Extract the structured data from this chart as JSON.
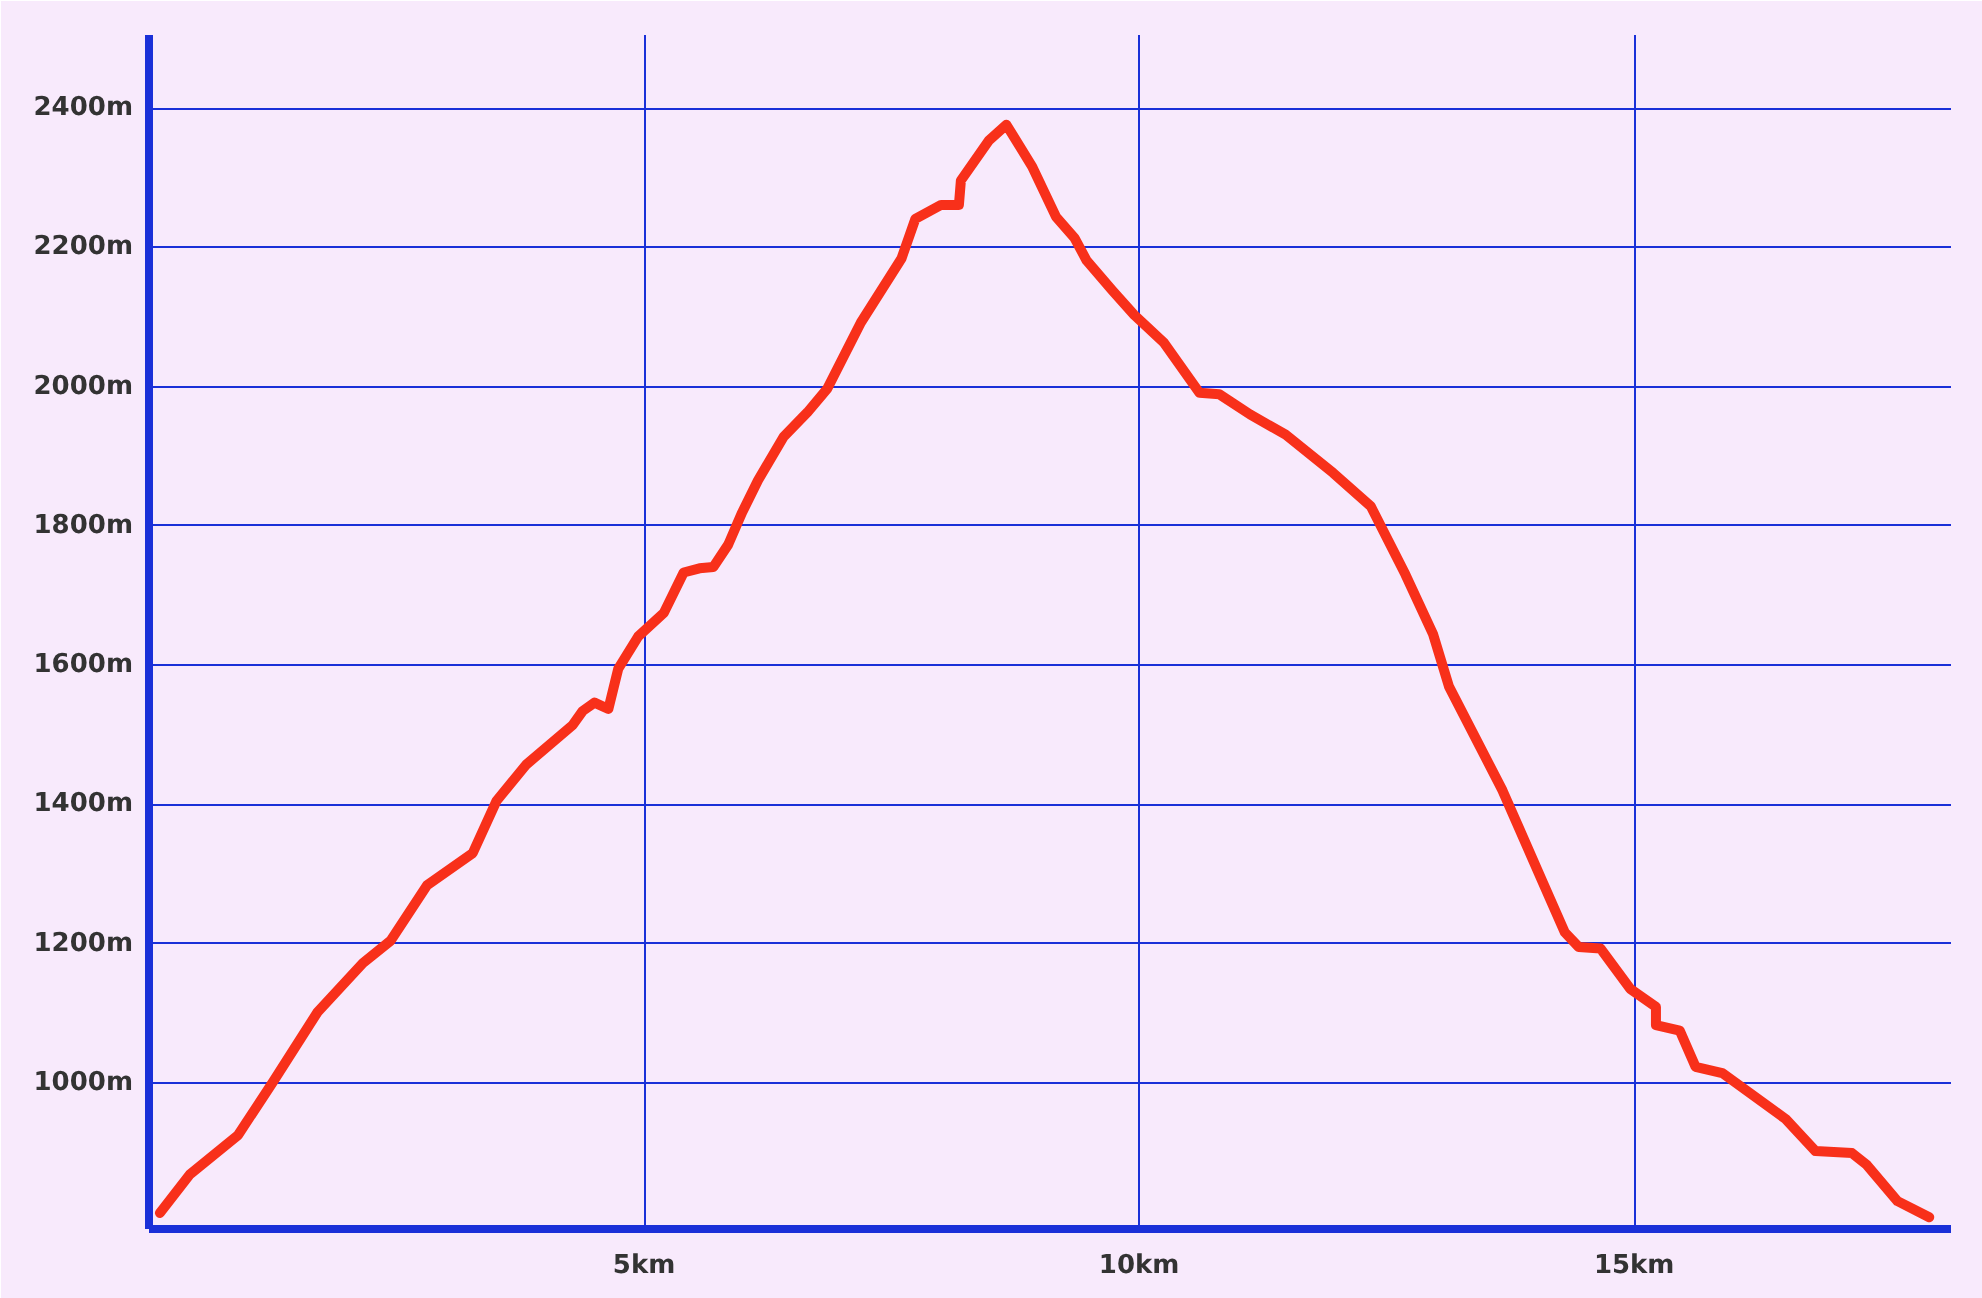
{
  "chart_data": {
    "type": "line",
    "x": [
      0.11,
      0.41,
      0.9,
      1.26,
      1.7,
      2.16,
      2.44,
      2.81,
      3.27,
      3.51,
      3.81,
      4.28,
      4.38,
      4.5,
      4.64,
      4.74,
      4.94,
      5.2,
      5.4,
      5.56,
      5.7,
      5.85,
      5.99,
      6.15,
      6.41,
      6.65,
      6.85,
      7.19,
      7.6,
      7.74,
      8.0,
      8.18,
      8.2,
      8.48,
      8.66,
      8.92,
      9.16,
      9.35,
      9.47,
      9.73,
      9.95,
      10.25,
      10.61,
      10.81,
      11.12,
      11.48,
      11.96,
      12.34,
      12.69,
      12.97,
      13.13,
      13.67,
      14.08,
      14.3,
      14.44,
      14.66,
      14.96,
      15.22,
      15.22,
      15.46,
      15.62,
      15.89,
      16.53,
      16.83,
      17.2,
      17.35,
      17.66,
      17.98
    ],
    "series": [
      {
        "color": "#f8301a",
        "values": [
          813,
          868,
          925,
          1003,
          1101,
          1172,
          1204,
          1284,
          1330,
          1405,
          1457,
          1514,
          1534,
          1546,
          1537,
          1595,
          1641,
          1675,
          1733,
          1739,
          1741,
          1773,
          1819,
          1865,
          1928,
          1963,
          1997,
          2092,
          2184,
          2241,
          2261,
          2261,
          2296,
          2353,
          2376,
          2316,
          2244,
          2213,
          2181,
          2138,
          2103,
          2063,
          1991,
          1989,
          1960,
          1931,
          1876,
          1828,
          1730,
          1644,
          1569,
          1420,
          1287,
          1216,
          1195,
          1193,
          1135,
          1109,
          1083,
          1075,
          1023,
          1014,
          948,
          902,
          899,
          882,
          830,
          807
        ]
      }
    ],
    "xlim": [
      0,
      18.2
    ],
    "ylim": [
      790,
      2505
    ],
    "xticks": [
      {
        "value": 5,
        "label": "5km"
      },
      {
        "value": 10,
        "label": "10km"
      },
      {
        "value": 15,
        "label": "15km"
      }
    ],
    "yticks": [
      {
        "value": 1000,
        "label": "1000m"
      },
      {
        "value": 1200,
        "label": "1200m"
      },
      {
        "value": 1400,
        "label": "1400m"
      },
      {
        "value": 1600,
        "label": "1600m"
      },
      {
        "value": 1800,
        "label": "1800m"
      },
      {
        "value": 2000,
        "label": "2000m"
      },
      {
        "value": 2200,
        "label": "2200m"
      },
      {
        "value": 2400,
        "label": "2400m"
      }
    ],
    "grid": true,
    "line_style": "solid"
  }
}
